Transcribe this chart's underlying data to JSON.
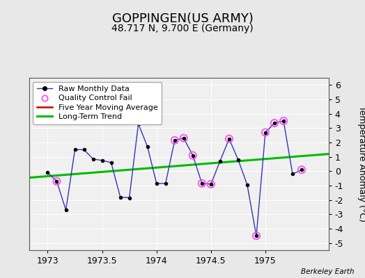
{
  "title": "GOPPINGEN(US ARMY)",
  "subtitle": "48.717 N, 9.700 E (Germany)",
  "credit": "Berkeley Earth",
  "ylabel": "Temperature Anomaly (°C)",
  "ylim": [
    -5.5,
    6.5
  ],
  "yticks": [
    -5,
    -4,
    -3,
    -2,
    -1,
    0,
    1,
    2,
    3,
    4,
    5,
    6
  ],
  "xlim": [
    1972.83,
    1975.58
  ],
  "xticks": [
    1973,
    1973.5,
    1974,
    1974.5,
    1975
  ],
  "xticklabels": [
    "1973",
    "1973.5",
    "1974",
    "1974.5",
    "1975"
  ],
  "background_color": "#e8e8e8",
  "plot_bg_color": "#f0f0f0",
  "monthly_x": [
    1973.0,
    1973.083,
    1973.167,
    1973.25,
    1973.333,
    1973.417,
    1973.5,
    1973.583,
    1973.667,
    1973.75,
    1973.833,
    1973.917,
    1974.0,
    1974.083,
    1974.167,
    1974.25,
    1974.333,
    1974.417,
    1974.5,
    1974.583,
    1974.667,
    1974.75,
    1974.833,
    1974.917,
    1975.0,
    1975.083,
    1975.167,
    1975.25,
    1975.333
  ],
  "monthly_y": [
    -0.1,
    -0.7,
    -2.7,
    1.5,
    1.5,
    0.85,
    0.75,
    0.6,
    -1.8,
    -1.85,
    3.3,
    1.7,
    -0.85,
    -0.85,
    2.15,
    2.3,
    1.1,
    -0.85,
    -0.9,
    0.7,
    2.25,
    0.8,
    -0.95,
    -4.5,
    2.7,
    3.35,
    3.5,
    -0.2,
    0.1
  ],
  "qc_fail_x": [
    1973.083,
    1974.167,
    1974.25,
    1974.333,
    1974.417,
    1974.5,
    1974.667,
    1974.917,
    1975.0,
    1975.083,
    1975.167,
    1975.333
  ],
  "qc_fail_y": [
    -0.7,
    2.15,
    2.3,
    1.1,
    -0.85,
    -0.9,
    2.25,
    -4.5,
    2.7,
    3.35,
    3.5,
    0.1
  ],
  "trend_x": [
    1972.83,
    1975.58
  ],
  "trend_y": [
    -0.45,
    1.2
  ],
  "line_color": "#3333bb",
  "marker_color": "#000000",
  "qc_color": "#ff44ff",
  "trend_color": "#00bb00",
  "ma_color": "#cc0000",
  "title_fontsize": 13,
  "subtitle_fontsize": 10,
  "label_fontsize": 9,
  "tick_fontsize": 9,
  "legend_fontsize": 8
}
